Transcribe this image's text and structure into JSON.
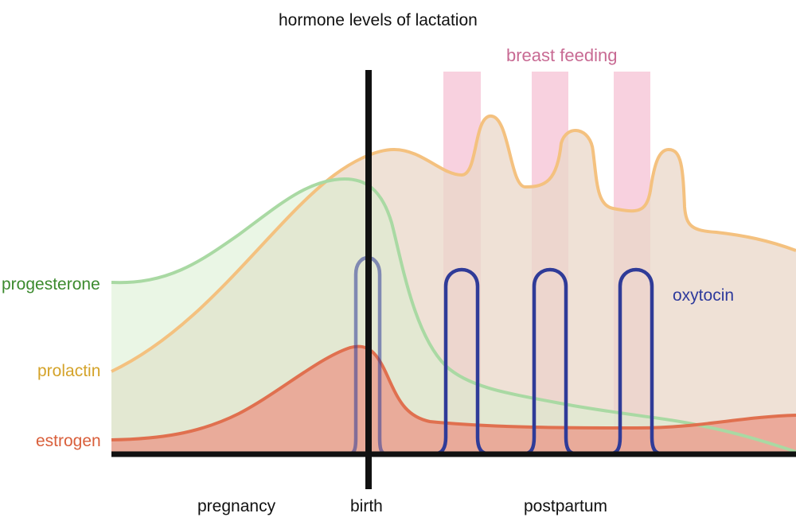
{
  "title": "hormone levels of lactation",
  "breast_feeding": {
    "label": "breast feeding",
    "color": "#f7c9d9"
  },
  "hormones": {
    "progesterone": {
      "label": "progesterone",
      "color": "#3c8a2e",
      "line_color": "#a9d9a3",
      "fill_color": "#d8efcf"
    },
    "prolactin": {
      "label": "prolactin",
      "color": "#d4a32a",
      "line_color": "#f4c17f",
      "fill_color": "#e9d7c8"
    },
    "estrogen": {
      "label": "estrogen",
      "color": "#d95f3b",
      "line_color": "#e0704f",
      "fill_color": "#eaa090"
    },
    "oxytocin": {
      "label": "oxytocin",
      "color": "#2e3a9c",
      "line_color": "#2f3b98"
    }
  },
  "phases": {
    "pregnancy": "pregnancy",
    "birth": "birth",
    "postpartum": "postpartum"
  }
}
